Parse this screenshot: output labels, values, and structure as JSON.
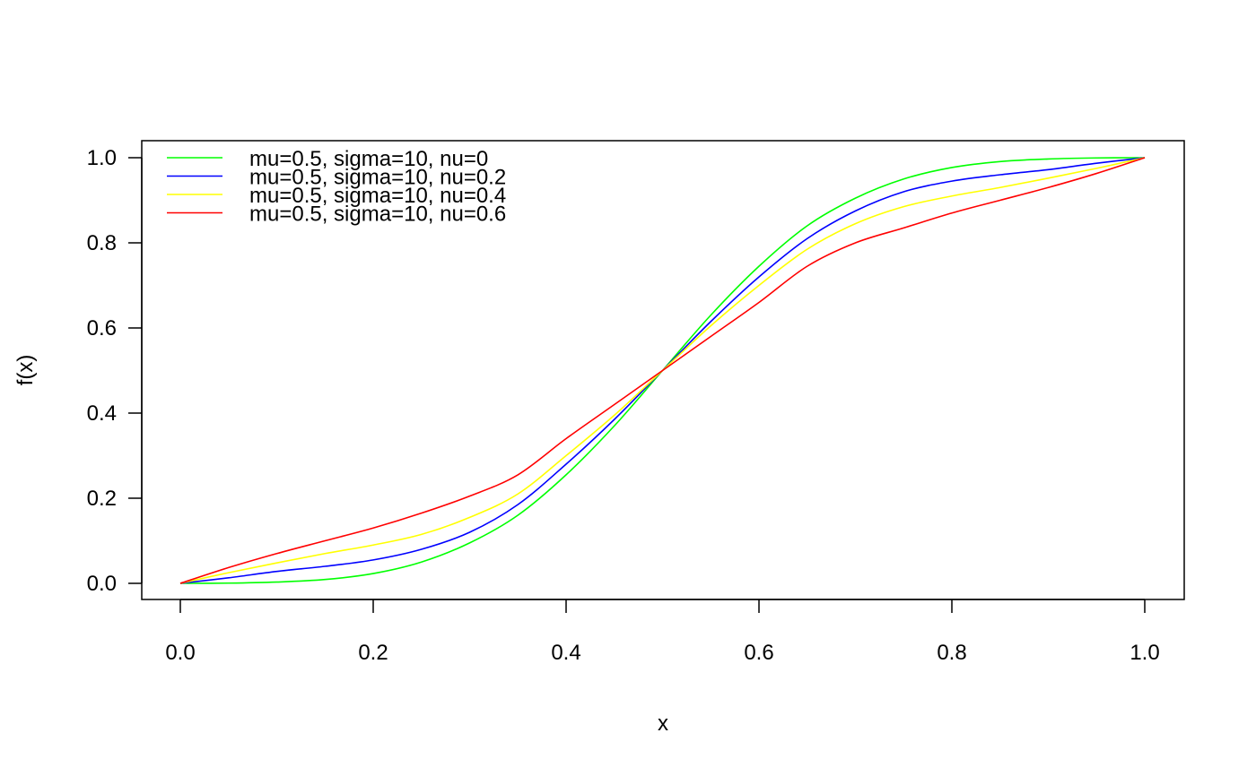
{
  "chart_data": {
    "type": "line",
    "title": "",
    "xlabel": "x",
    "ylabel": "f(x)",
    "xlim": [
      0,
      1
    ],
    "ylim": [
      0,
      1
    ],
    "x_ticks": [
      "0.0",
      "0.2",
      "0.4",
      "0.6",
      "0.8",
      "1.0"
    ],
    "y_ticks": [
      "0.0",
      "0.2",
      "0.4",
      "0.6",
      "0.8",
      "1.0"
    ],
    "grid": false,
    "legend_position": "top-left",
    "x": [
      0.0,
      0.05,
      0.1,
      0.15,
      0.2,
      0.25,
      0.3,
      0.35,
      0.4,
      0.45,
      0.5,
      0.55,
      0.6,
      0.65,
      0.7,
      0.75,
      0.8,
      0.85,
      0.9,
      0.95,
      1.0
    ],
    "series": [
      {
        "name": "mu=0.5, sigma=10, nu=0",
        "color": "#00ff00",
        "values": [
          0.0,
          0.0005,
          0.003,
          0.009,
          0.023,
          0.05,
          0.095,
          0.16,
          0.255,
          0.37,
          0.5,
          0.63,
          0.745,
          0.84,
          0.905,
          0.95,
          0.977,
          0.991,
          0.997,
          0.9995,
          1.0
        ]
      },
      {
        "name": "mu=0.5, sigma=10, nu=0.2",
        "color": "#0000ff",
        "values": [
          0.0,
          0.013,
          0.028,
          0.04,
          0.055,
          0.08,
          0.12,
          0.185,
          0.28,
          0.385,
          0.5,
          0.615,
          0.72,
          0.81,
          0.875,
          0.92,
          0.945,
          0.96,
          0.972,
          0.987,
          1.0
        ]
      },
      {
        "name": "mu=0.5, sigma=10, nu=0.4",
        "color": "#ffff00",
        "values": [
          0.0,
          0.025,
          0.048,
          0.07,
          0.09,
          0.115,
          0.155,
          0.21,
          0.3,
          0.395,
          0.5,
          0.605,
          0.7,
          0.785,
          0.845,
          0.885,
          0.91,
          0.93,
          0.952,
          0.975,
          1.0
        ]
      },
      {
        "name": "mu=0.5, sigma=10, nu=0.6",
        "color": "#ff0000",
        "values": [
          0.0,
          0.037,
          0.07,
          0.1,
          0.13,
          0.165,
          0.205,
          0.255,
          0.34,
          0.42,
          0.5,
          0.58,
          0.66,
          0.745,
          0.8,
          0.835,
          0.87,
          0.9,
          0.93,
          0.963,
          1.0
        ]
      }
    ]
  }
}
